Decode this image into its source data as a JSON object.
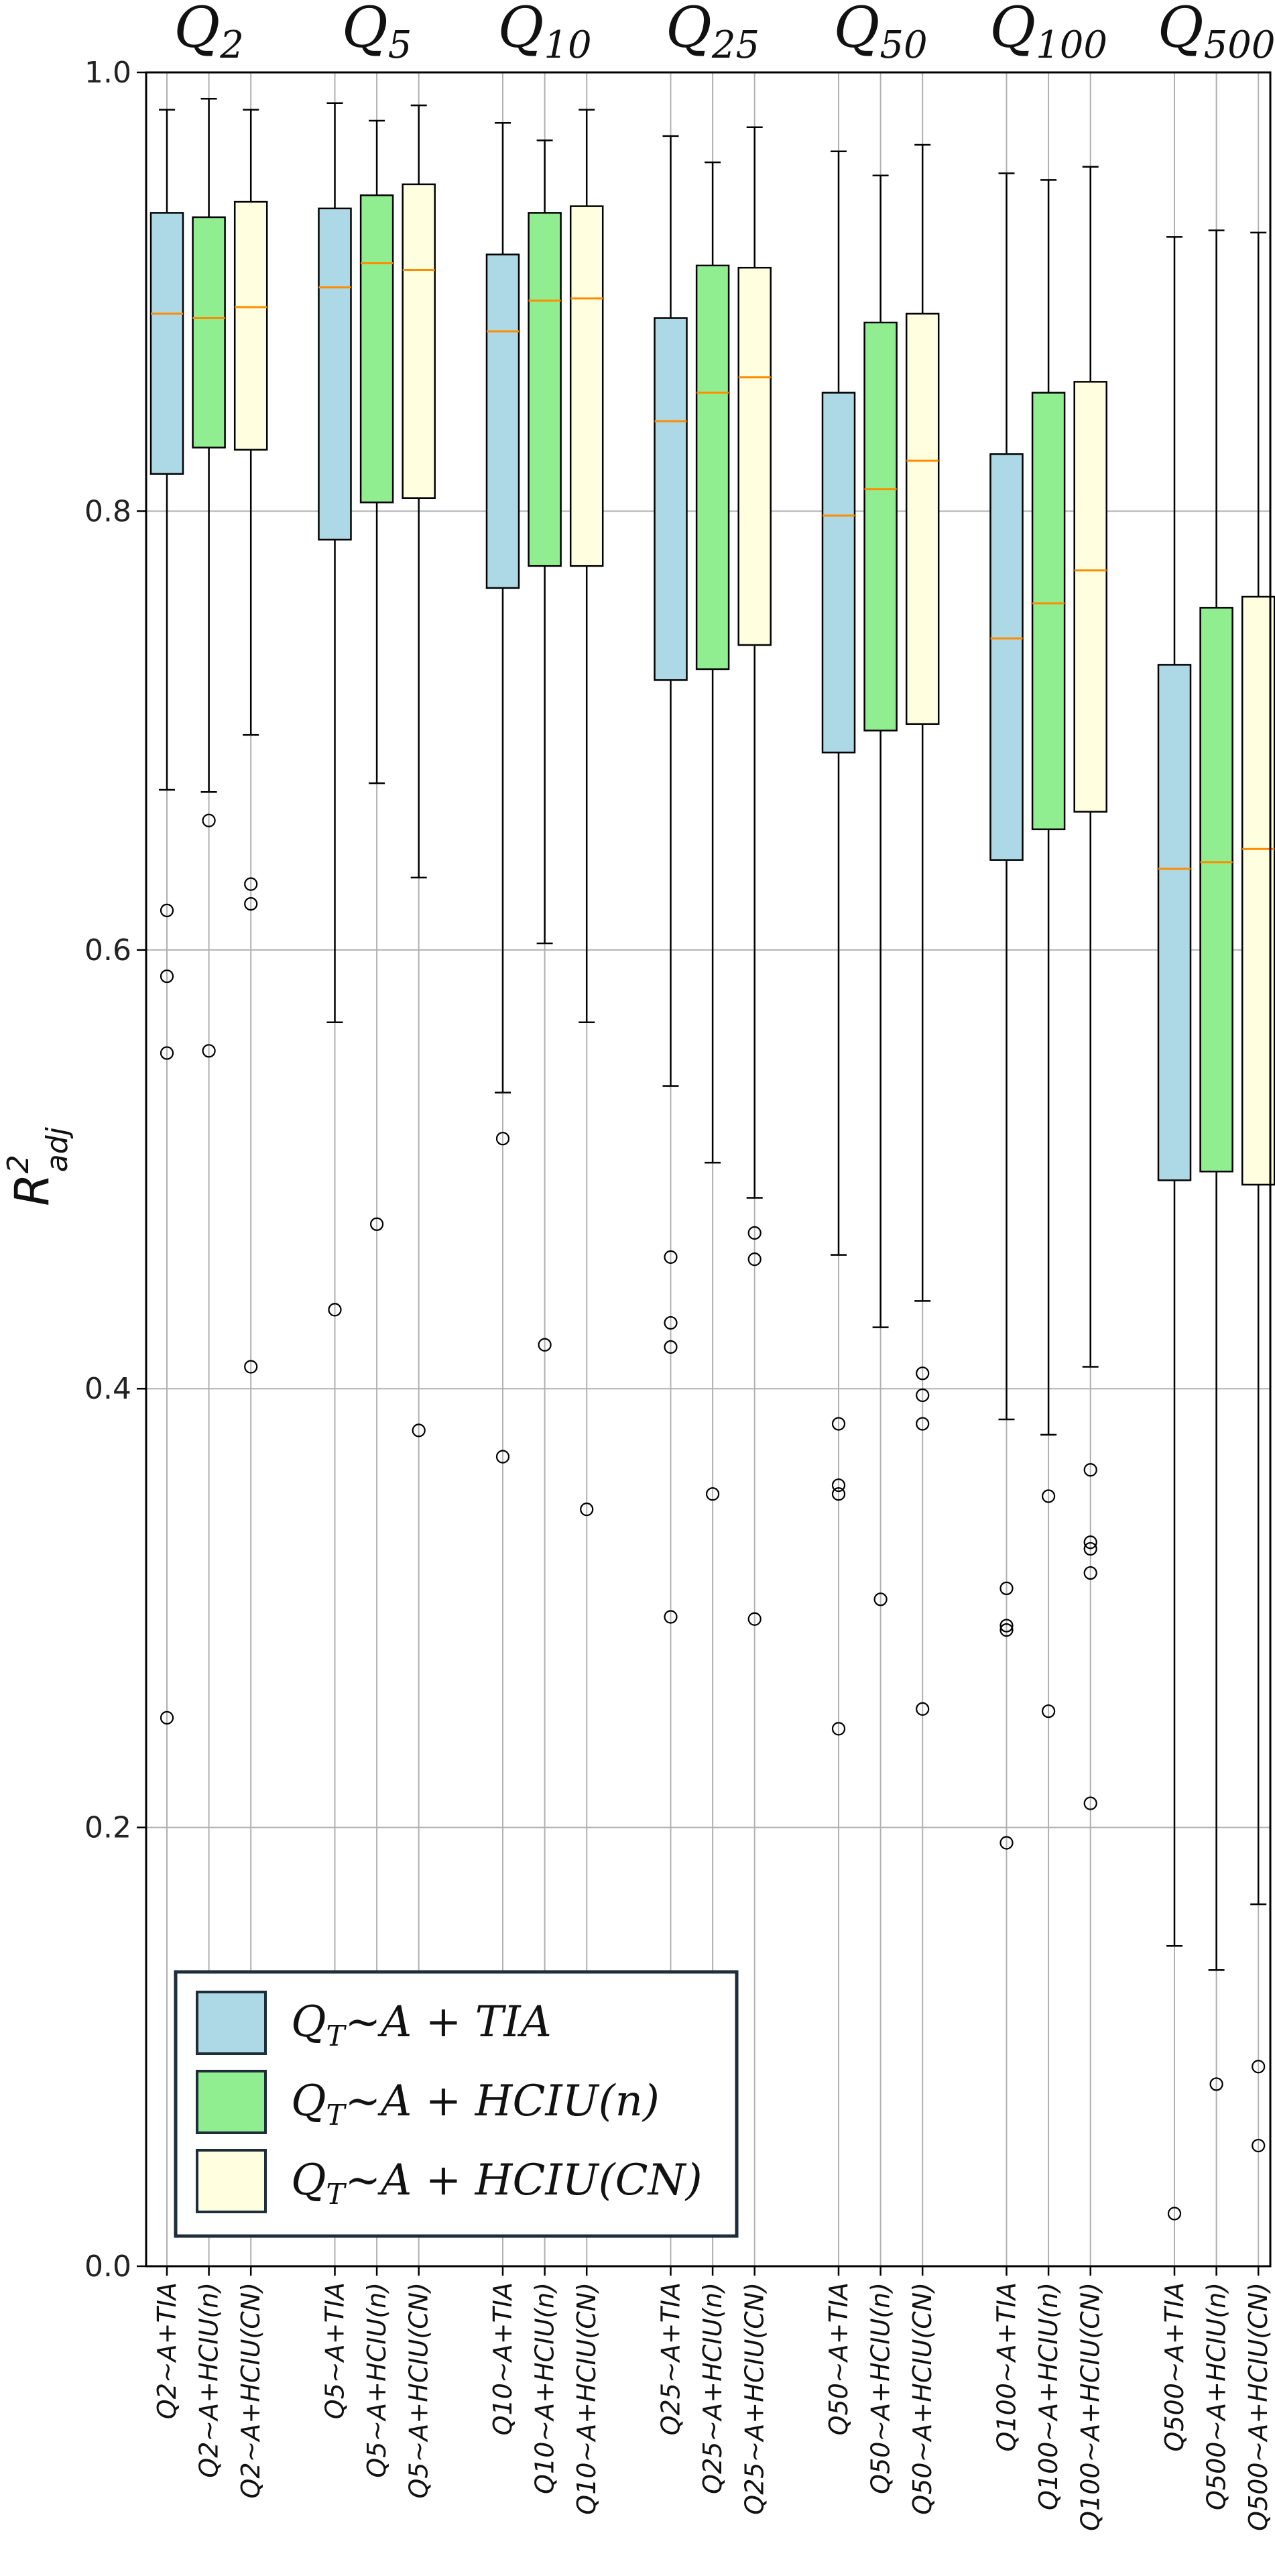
{
  "chart_data": {
    "type": "box",
    "ylabel": "R",
    "ylabel_sup": "2",
    "ylabel_sub": "adj",
    "ylim": [
      0.0,
      1.0
    ],
    "yticks": [
      "0.0",
      "0.2",
      "0.4",
      "0.6",
      "0.8",
      "1.0"
    ],
    "grid": true,
    "legend_position": "lower-left",
    "colors": {
      "TIA": "#add8e6",
      "HCIU(n)": "#90ee90",
      "HCIU(CN)": "#ffffe0",
      "median": "#ff8c00"
    },
    "legend": [
      {
        "key": "TIA",
        "text": "Q_T~A + TIA",
        "pre": "Q",
        "sub": "T",
        "post": "~A + TIA"
      },
      {
        "key": "HCIU(n)",
        "text": "Q_T~A + HCIU(n)",
        "pre": "Q",
        "sub": "T",
        "post": "~A + HCIU(n)"
      },
      {
        "key": "HCIU(CN)",
        "text": "Q_T~A + HCIU(CN)",
        "pre": "Q",
        "sub": "T",
        "post": "~A + HCIU(CN)"
      }
    ],
    "groups": [
      {
        "title": "Q",
        "sub": "2",
        "boxes": [
          {
            "label": "Q2~A+TIA",
            "series": "TIA",
            "whislo": 0.673,
            "q1": 0.817,
            "med": 0.89,
            "q3": 0.936,
            "whishi": 0.983,
            "fliers": [
              0.618,
              0.588,
              0.553,
              0.25
            ]
          },
          {
            "label": "Q2~A+HCIU(n)",
            "series": "HCIU(n)",
            "whislo": 0.672,
            "q1": 0.829,
            "med": 0.888,
            "q3": 0.934,
            "whishi": 0.988,
            "fliers": [
              0.659,
              0.554
            ]
          },
          {
            "label": "Q2~A+HCIU(CN)",
            "series": "HCIU(CN)",
            "whislo": 0.698,
            "q1": 0.828,
            "med": 0.893,
            "q3": 0.941,
            "whishi": 0.983,
            "fliers": [
              0.63,
              0.621,
              0.41
            ]
          }
        ]
      },
      {
        "title": "Q",
        "sub": "5",
        "boxes": [
          {
            "label": "Q5~A+TIA",
            "series": "TIA",
            "whislo": 0.567,
            "q1": 0.787,
            "med": 0.902,
            "q3": 0.938,
            "whishi": 0.986,
            "fliers": [
              0.436
            ]
          },
          {
            "label": "Q5~A+HCIU(n)",
            "series": "HCIU(n)",
            "whislo": 0.676,
            "q1": 0.804,
            "med": 0.913,
            "q3": 0.944,
            "whishi": 0.978,
            "fliers": [
              0.475
            ]
          },
          {
            "label": "Q5~A+HCIU(CN)",
            "series": "HCIU(CN)",
            "whislo": 0.633,
            "q1": 0.806,
            "med": 0.91,
            "q3": 0.949,
            "whishi": 0.985,
            "fliers": [
              0.381
            ]
          }
        ]
      },
      {
        "title": "Q",
        "sub": "10",
        "boxes": [
          {
            "label": "Q10~A+TIA",
            "series": "TIA",
            "whislo": 0.535,
            "q1": 0.765,
            "med": 0.882,
            "q3": 0.917,
            "whishi": 0.977,
            "fliers": [
              0.514,
              0.369
            ]
          },
          {
            "label": "Q10~A+HCIU(n)",
            "series": "HCIU(n)",
            "whislo": 0.603,
            "q1": 0.775,
            "med": 0.896,
            "q3": 0.936,
            "whishi": 0.969,
            "fliers": [
              0.42
            ]
          },
          {
            "label": "Q10~A+HCIU(CN)",
            "series": "HCIU(CN)",
            "whislo": 0.567,
            "q1": 0.775,
            "med": 0.897,
            "q3": 0.939,
            "whishi": 0.983,
            "fliers": [
              0.345
            ]
          }
        ]
      },
      {
        "title": "Q",
        "sub": "25",
        "boxes": [
          {
            "label": "Q25~A+TIA",
            "series": "TIA",
            "whislo": 0.538,
            "q1": 0.723,
            "med": 0.841,
            "q3": 0.888,
            "whishi": 0.971,
            "fliers": [
              0.46,
              0.43,
              0.419,
              0.296
            ]
          },
          {
            "label": "Q25~A+HCIU(n)",
            "series": "HCIU(n)",
            "whislo": 0.503,
            "q1": 0.728,
            "med": 0.854,
            "q3": 0.912,
            "whishi": 0.959,
            "fliers": [
              0.352
            ]
          },
          {
            "label": "Q25~A+HCIU(CN)",
            "series": "HCIU(CN)",
            "whislo": 0.487,
            "q1": 0.739,
            "med": 0.861,
            "q3": 0.911,
            "whishi": 0.975,
            "fliers": [
              0.471,
              0.459,
              0.295
            ]
          }
        ]
      },
      {
        "title": "Q",
        "sub": "50",
        "boxes": [
          {
            "label": "Q50~A+TIA",
            "series": "TIA",
            "whislo": 0.461,
            "q1": 0.69,
            "med": 0.798,
            "q3": 0.854,
            "whishi": 0.964,
            "fliers": [
              0.384,
              0.356,
              0.352,
              0.245
            ]
          },
          {
            "label": "Q50~A+HCIU(n)",
            "series": "HCIU(n)",
            "whislo": 0.428,
            "q1": 0.7,
            "med": 0.81,
            "q3": 0.886,
            "whishi": 0.953,
            "fliers": [
              0.304
            ]
          },
          {
            "label": "Q50~A+HCIU(CN)",
            "series": "HCIU(CN)",
            "whislo": 0.44,
            "q1": 0.703,
            "med": 0.823,
            "q3": 0.89,
            "whishi": 0.967,
            "fliers": [
              0.407,
              0.397,
              0.384,
              0.254
            ]
          }
        ]
      },
      {
        "title": "Q",
        "sub": "100",
        "boxes": [
          {
            "label": "Q100~A+TIA",
            "series": "TIA",
            "whislo": 0.386,
            "q1": 0.641,
            "med": 0.742,
            "q3": 0.826,
            "whishi": 0.954,
            "fliers": [
              0.309,
              0.292,
              0.29,
              0.193
            ]
          },
          {
            "label": "Q100~A+HCIU(n)",
            "series": "HCIU(n)",
            "whislo": 0.379,
            "q1": 0.655,
            "med": 0.758,
            "q3": 0.854,
            "whishi": 0.951,
            "fliers": [
              0.351,
              0.253
            ]
          },
          {
            "label": "Q100~A+HCIU(CN)",
            "series": "HCIU(CN)",
            "whislo": 0.41,
            "q1": 0.663,
            "med": 0.773,
            "q3": 0.859,
            "whishi": 0.957,
            "fliers": [
              0.363,
              0.33,
              0.327,
              0.316,
              0.211
            ]
          }
        ]
      },
      {
        "title": "Q",
        "sub": "500",
        "boxes": [
          {
            "label": "Q500~A+TIA",
            "series": "TIA",
            "whislo": 0.146,
            "q1": 0.495,
            "med": 0.637,
            "q3": 0.73,
            "whishi": 0.925,
            "fliers": [
              0.024
            ]
          },
          {
            "label": "Q500~A+HCIU(n)",
            "series": "HCIU(n)",
            "whislo": 0.135,
            "q1": 0.499,
            "med": 0.64,
            "q3": 0.756,
            "whishi": 0.928,
            "fliers": [
              0.083
            ]
          },
          {
            "label": "Q500~A+HCIU(CN)",
            "series": "HCIU(CN)",
            "whislo": 0.165,
            "q1": 0.493,
            "med": 0.646,
            "q3": 0.761,
            "whishi": 0.927,
            "fliers": [
              0.091,
              0.055
            ]
          }
        ]
      }
    ]
  }
}
